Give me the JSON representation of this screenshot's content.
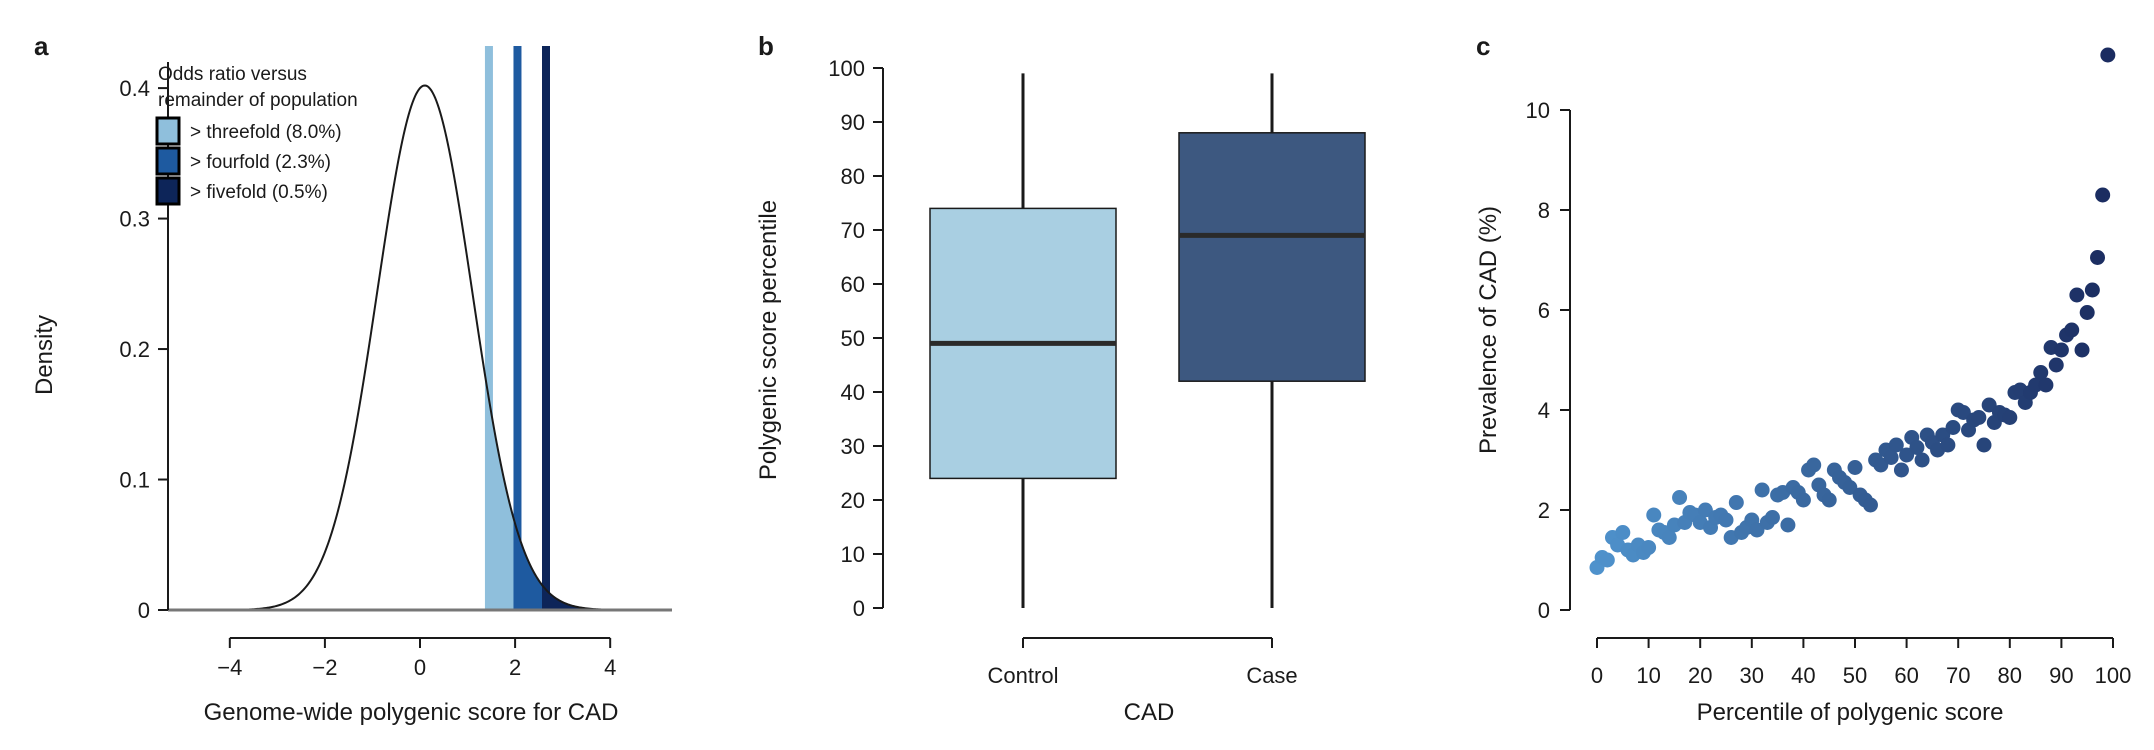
{
  "chart_data": [
    {
      "panel": "a",
      "type": "area",
      "title": "",
      "xlabel": "Genome-wide polygenic score for CAD",
      "ylabel": "Density",
      "xlim": [
        -5.3,
        5.3
      ],
      "ylim": [
        0,
        0.42
      ],
      "x_ticks": [
        -4,
        -2,
        0,
        2,
        4
      ],
      "x_tick_labels": [
        "−4",
        "−2",
        "0",
        "2",
        "4"
      ],
      "y_ticks": [
        0,
        0.1,
        0.2,
        0.3,
        0.4
      ],
      "y_tick_labels": [
        "0",
        "0.1",
        "0.2",
        "0.3",
        "0.4"
      ],
      "density_curve": {
        "distribution": "normal",
        "mean": 0.1,
        "sd": 1.0,
        "peak": 0.402,
        "x_range": [
          -5.3,
          5.3
        ]
      },
      "thresholds": [
        {
          "x": 1.45,
          "color": "#8fbfdc"
        },
        {
          "x": 2.05,
          "color": "#1e5aa0"
        },
        {
          "x": 2.65,
          "color": "#0d2559"
        }
      ],
      "legend": {
        "title": [
          "Odds ratio versus",
          "remainder of population"
        ],
        "placement": "top-left",
        "entries": [
          {
            "label": "> threefold (8.0%)",
            "color": "#8fbfdc"
          },
          {
            "label": "> fourfold (2.3%)",
            "color": "#1e5aa0"
          },
          {
            "label": "> fivefold (0.5%)",
            "color": "#0d2559"
          }
        ]
      },
      "colors": {
        "curve": "#1a1a1a",
        "baseline": "#777777"
      }
    },
    {
      "panel": "b",
      "type": "box",
      "title": "",
      "xlabel": "CAD",
      "ylabel": "Polygenic score percentile",
      "ylim": [
        0,
        100
      ],
      "y_ticks": [
        0,
        10,
        20,
        30,
        40,
        50,
        60,
        70,
        80,
        90,
        100
      ],
      "categories": [
        "Control",
        "Case"
      ],
      "boxes": [
        {
          "name": "Control",
          "min": 0,
          "q1": 24,
          "median": 49,
          "q3": 74,
          "max": 99,
          "color": "#a9cfe2"
        },
        {
          "name": "Case",
          "min": 0,
          "q1": 42,
          "median": 69,
          "q3": 88,
          "max": 99,
          "color": "#3d5880"
        }
      ]
    },
    {
      "panel": "c",
      "type": "scatter",
      "title": "",
      "xlabel": "Percentile of polygenic score",
      "ylabel": "Prevalence of CAD (%)",
      "xlim": [
        0,
        100
      ],
      "ylim": [
        0,
        11
      ],
      "x_ticks": [
        0,
        10,
        20,
        30,
        40,
        50,
        60,
        70,
        80,
        90,
        100
      ],
      "y_ticks": [
        0,
        2,
        4,
        6,
        8,
        10
      ],
      "color_gradient": [
        "#4f92cc",
        "#1a2b5f"
      ],
      "points": [
        {
          "x": 0,
          "y": 0.85
        },
        {
          "x": 1,
          "y": 1.05
        },
        {
          "x": 2,
          "y": 1.0
        },
        {
          "x": 3,
          "y": 1.45
        },
        {
          "x": 4,
          "y": 1.3
        },
        {
          "x": 5,
          "y": 1.55
        },
        {
          "x": 6,
          "y": 1.2
        },
        {
          "x": 7,
          "y": 1.1
        },
        {
          "x": 8,
          "y": 1.3
        },
        {
          "x": 9,
          "y": 1.15
        },
        {
          "x": 10,
          "y": 1.25
        },
        {
          "x": 11,
          "y": 1.9
        },
        {
          "x": 12,
          "y": 1.6
        },
        {
          "x": 13,
          "y": 1.55
        },
        {
          "x": 14,
          "y": 1.45
        },
        {
          "x": 15,
          "y": 1.7
        },
        {
          "x": 16,
          "y": 2.25
        },
        {
          "x": 17,
          "y": 1.75
        },
        {
          "x": 18,
          "y": 1.95
        },
        {
          "x": 19,
          "y": 1.9
        },
        {
          "x": 20,
          "y": 1.75
        },
        {
          "x": 21,
          "y": 2.0
        },
        {
          "x": 22,
          "y": 1.65
        },
        {
          "x": 23,
          "y": 1.85
        },
        {
          "x": 24,
          "y": 1.9
        },
        {
          "x": 25,
          "y": 1.8
        },
        {
          "x": 26,
          "y": 1.45
        },
        {
          "x": 27,
          "y": 2.15
        },
        {
          "x": 28,
          "y": 1.55
        },
        {
          "x": 29,
          "y": 1.65
        },
        {
          "x": 30,
          "y": 1.8
        },
        {
          "x": 31,
          "y": 1.6
        },
        {
          "x": 32,
          "y": 2.4
        },
        {
          "x": 33,
          "y": 1.75
        },
        {
          "x": 34,
          "y": 1.85
        },
        {
          "x": 35,
          "y": 2.3
        },
        {
          "x": 36,
          "y": 2.35
        },
        {
          "x": 37,
          "y": 1.7
        },
        {
          "x": 38,
          "y": 2.45
        },
        {
          "x": 39,
          "y": 2.35
        },
        {
          "x": 40,
          "y": 2.2
        },
        {
          "x": 41,
          "y": 2.8
        },
        {
          "x": 42,
          "y": 2.9
        },
        {
          "x": 43,
          "y": 2.5
        },
        {
          "x": 44,
          "y": 2.3
        },
        {
          "x": 45,
          "y": 2.2
        },
        {
          "x": 46,
          "y": 2.8
        },
        {
          "x": 47,
          "y": 2.65
        },
        {
          "x": 48,
          "y": 2.55
        },
        {
          "x": 49,
          "y": 2.45
        },
        {
          "x": 50,
          "y": 2.85
        },
        {
          "x": 51,
          "y": 2.3
        },
        {
          "x": 52,
          "y": 2.2
        },
        {
          "x": 53,
          "y": 2.1
        },
        {
          "x": 54,
          "y": 3.0
        },
        {
          "x": 55,
          "y": 2.9
        },
        {
          "x": 56,
          "y": 3.2
        },
        {
          "x": 57,
          "y": 3.05
        },
        {
          "x": 58,
          "y": 3.3
        },
        {
          "x": 59,
          "y": 2.8
        },
        {
          "x": 60,
          "y": 3.1
        },
        {
          "x": 61,
          "y": 3.45
        },
        {
          "x": 62,
          "y": 3.25
        },
        {
          "x": 63,
          "y": 3.0
        },
        {
          "x": 64,
          "y": 3.5
        },
        {
          "x": 65,
          "y": 3.35
        },
        {
          "x": 66,
          "y": 3.2
        },
        {
          "x": 67,
          "y": 3.5
        },
        {
          "x": 68,
          "y": 3.3
        },
        {
          "x": 69,
          "y": 3.65
        },
        {
          "x": 70,
          "y": 4.0
        },
        {
          "x": 71,
          "y": 3.95
        },
        {
          "x": 72,
          "y": 3.6
        },
        {
          "x": 73,
          "y": 3.8
        },
        {
          "x": 74,
          "y": 3.85
        },
        {
          "x": 75,
          "y": 3.3
        },
        {
          "x": 76,
          "y": 4.1
        },
        {
          "x": 77,
          "y": 3.75
        },
        {
          "x": 78,
          "y": 3.95
        },
        {
          "x": 79,
          "y": 3.9
        },
        {
          "x": 80,
          "y": 3.85
        },
        {
          "x": 81,
          "y": 4.35
        },
        {
          "x": 82,
          "y": 4.4
        },
        {
          "x": 83,
          "y": 4.15
        },
        {
          "x": 84,
          "y": 4.35
        },
        {
          "x": 85,
          "y": 4.5
        },
        {
          "x": 86,
          "y": 4.75
        },
        {
          "x": 87,
          "y": 4.5
        },
        {
          "x": 88,
          "y": 5.25
        },
        {
          "x": 89,
          "y": 4.9
        },
        {
          "x": 90,
          "y": 5.2
        },
        {
          "x": 91,
          "y": 5.5
        },
        {
          "x": 92,
          "y": 5.6
        },
        {
          "x": 93,
          "y": 6.3
        },
        {
          "x": 94,
          "y": 5.2
        },
        {
          "x": 95,
          "y": 5.95
        },
        {
          "x": 96,
          "y": 6.4
        },
        {
          "x": 97,
          "y": 7.05
        },
        {
          "x": 98,
          "y": 8.3
        },
        {
          "x": 99,
          "y": 11.1
        }
      ]
    }
  ]
}
